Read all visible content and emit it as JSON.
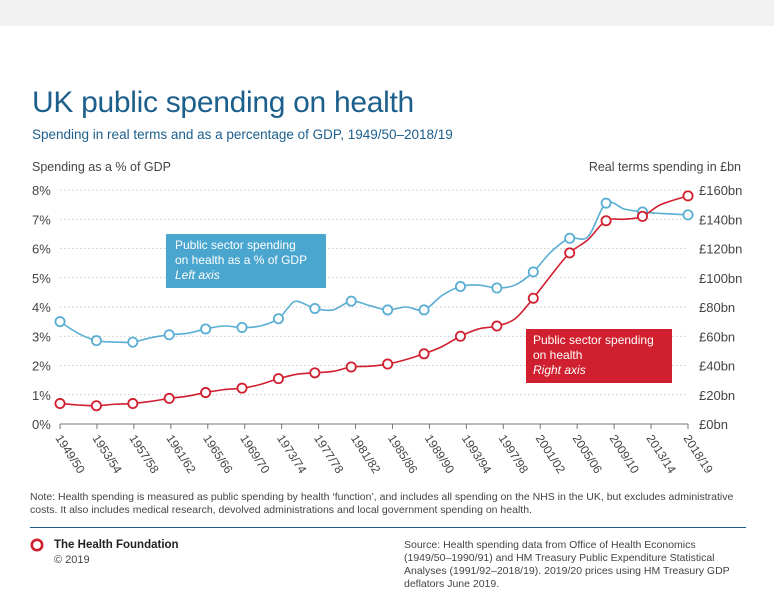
{
  "page": {
    "title": "UK public spending on health",
    "subtitle": "Spending in real terms and as a percentage of GDP, 1949/50–2018/19",
    "note": "Note: Health spending is measured as public spending by health ‘function’, and includes all spending on the NHS in the UK, but excludes administrative costs. It also includes medical research, devolved administrations and local government spending on health.",
    "org_name": "The Health Foundation",
    "copyright": "© 2019",
    "source": "Source: Health spending data from Office of Health Economics (1949/50–1990/91) and HM Treasury Public Expenditure Statistical Analyses (1991/92–2018/19). 2019/20 prices using HM Treasury GDP deflators June 2019."
  },
  "colors": {
    "title": "#1c5f8c",
    "gdp_series": "#5aaed3",
    "gdp_box": "#4aa6cf",
    "real_series": "#d01f2e",
    "real_box": "#d01f2e",
    "grid": "#bbbbbb",
    "text": "#444444"
  },
  "chart_data": {
    "type": "line",
    "xlabel_ticks": [
      "1949/50",
      "1953/54",
      "1957/58",
      "1961/62",
      "1965/66",
      "1969/70",
      "1973/74",
      "1977/78",
      "1981/82",
      "1985/86",
      "1989/90",
      "1993/94",
      "1997/98",
      "2001/02",
      "2005/06",
      "2009/10",
      "2013/14",
      "2018/19"
    ],
    "x_range": [
      1949,
      2018
    ],
    "left_axis": {
      "title": "Spending as a % of GDP",
      "range": [
        0,
        8
      ],
      "ticks": [
        0,
        1,
        2,
        3,
        4,
        5,
        6,
        7,
        8
      ],
      "tick_labels": [
        "0%",
        "1%",
        "2%",
        "3%",
        "4%",
        "5%",
        "6%",
        "7%",
        "8%"
      ]
    },
    "right_axis": {
      "title": "Real terms spending in £bn",
      "range": [
        0,
        160
      ],
      "ticks": [
        0,
        20,
        40,
        60,
        80,
        100,
        120,
        140,
        160
      ],
      "tick_labels": [
        "£0bn",
        "£20bn",
        "£40bn",
        "£60bn",
        "£80bn",
        "£100bn",
        "£120bn",
        "£140bn",
        "£160bn"
      ]
    },
    "grid": true,
    "series": [
      {
        "name": "Public sector spending on health as a % of GDP",
        "axis_note": "Left axis",
        "axis": "left",
        "x": [
          1949,
          1951,
          1953,
          1955,
          1957,
          1959,
          1961,
          1963,
          1965,
          1967,
          1969,
          1971,
          1973,
          1974,
          1975,
          1977,
          1979,
          1981,
          1983,
          1985,
          1987,
          1989,
          1991,
          1993,
          1995,
          1997,
          1999,
          2001,
          2003,
          2005,
          2007,
          2009,
          2011,
          2013,
          2015,
          2018
        ],
        "y": [
          3.5,
          3.1,
          2.85,
          2.8,
          2.8,
          2.95,
          3.05,
          3.1,
          3.25,
          3.35,
          3.3,
          3.35,
          3.6,
          3.95,
          4.2,
          3.95,
          3.9,
          4.2,
          4.05,
          3.9,
          4.0,
          3.9,
          4.4,
          4.7,
          4.75,
          4.65,
          4.75,
          5.2,
          5.9,
          6.35,
          6.4,
          7.55,
          7.35,
          7.25,
          7.2,
          7.15
        ],
        "markers": [
          [
            1949,
            3.5
          ],
          [
            1953,
            2.85
          ],
          [
            1957,
            2.8
          ],
          [
            1961,
            3.05
          ],
          [
            1965,
            3.25
          ],
          [
            1969,
            3.3
          ],
          [
            1973,
            3.6
          ],
          [
            1977,
            3.95
          ],
          [
            1981,
            4.2
          ],
          [
            1985,
            3.9
          ],
          [
            1989,
            3.9
          ],
          [
            1993,
            4.7
          ],
          [
            1997,
            4.65
          ],
          [
            2001,
            5.2
          ],
          [
            2005,
            6.35
          ],
          [
            2009,
            7.55
          ],
          [
            2013,
            7.25
          ],
          [
            2018,
            7.15
          ]
        ]
      },
      {
        "name": "Public sector spending on health",
        "axis_note": "Right axis",
        "axis": "right",
        "x": [
          1949,
          1951,
          1953,
          1955,
          1957,
          1959,
          1961,
          1963,
          1965,
          1967,
          1969,
          1971,
          1973,
          1975,
          1977,
          1979,
          1981,
          1983,
          1985,
          1987,
          1989,
          1991,
          1993,
          1995,
          1997,
          1999,
          2001,
          2003,
          2005,
          2007,
          2009,
          2011,
          2013,
          2015,
          2018
        ],
        "y": [
          14,
          13,
          12.5,
          13.5,
          14,
          15.5,
          17.5,
          19,
          21.5,
          23.5,
          24.5,
          27,
          31,
          34,
          35,
          36,
          39,
          39.5,
          41,
          44,
          48,
          53,
          60,
          65,
          67,
          72,
          86,
          102,
          117,
          126,
          139,
          140,
          142,
          150,
          156
        ],
        "markers": [
          [
            1949,
            14
          ],
          [
            1953,
            12.5
          ],
          [
            1957,
            14
          ],
          [
            1961,
            17.5
          ],
          [
            1965,
            21.5
          ],
          [
            1969,
            24.5
          ],
          [
            1973,
            31
          ],
          [
            1977,
            35
          ],
          [
            1981,
            39
          ],
          [
            1985,
            41
          ],
          [
            1989,
            48
          ],
          [
            1993,
            60
          ],
          [
            1997,
            67
          ],
          [
            2001,
            86
          ],
          [
            2005,
            117
          ],
          [
            2009,
            139
          ],
          [
            2013,
            142
          ],
          [
            2018,
            156
          ]
        ]
      }
    ],
    "annotations": [
      {
        "series": 0,
        "lines": [
          "Public sector spending",
          "on health as a % of GDP"
        ],
        "italic": "Left axis"
      },
      {
        "series": 1,
        "lines": [
          "Public sector spending",
          "on health"
        ],
        "italic": "Right axis"
      }
    ]
  }
}
